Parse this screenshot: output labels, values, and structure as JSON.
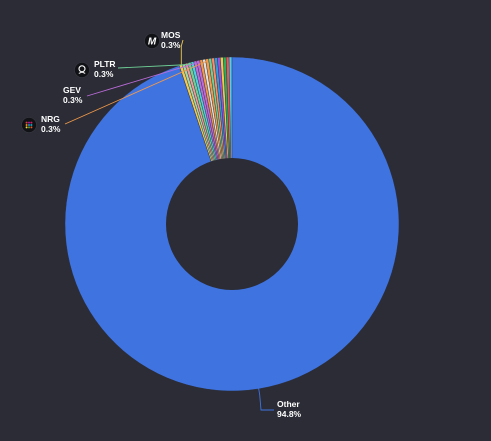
{
  "chart_data": {
    "type": "pie",
    "donut": true,
    "title": "",
    "legend": "none",
    "labeled_slices": [
      {
        "name": "Other",
        "value": 94.8,
        "value_label": "94.8%",
        "color": "#3f73e0",
        "icon": "",
        "leader_color": "#3f73e0"
      },
      {
        "name": "MOS",
        "value": 0.3,
        "value_label": "0.3%",
        "color": "#f2c94c",
        "icon": "mosaic-logo-icon",
        "leader_color": "#f2c94c"
      },
      {
        "name": "PLTR",
        "value": 0.3,
        "value_label": "0.3%",
        "color": "#6fcf97",
        "icon": "palantir-logo-icon",
        "leader_color": "#6fcf97"
      },
      {
        "name": "GEV",
        "value": 0.3,
        "value_label": "0.3%",
        "color": "#bb6bd9",
        "icon": "",
        "leader_color": "#bb6bd9"
      },
      {
        "name": "NRG",
        "value": 0.3,
        "value_label": "0.3%",
        "color": "#f2994a",
        "icon": "nrg-logo-icon",
        "leader_color": "#f2994a"
      }
    ],
    "other_small_slices": {
      "count": 14,
      "approx_value_each": 0.28,
      "colors": [
        "#56ccf2",
        "#eb5757",
        "#27ae60",
        "#f2c94c",
        "#9b51e0",
        "#2d9cdb",
        "#ff8a65",
        "#6fcf97",
        "#e0e0e0",
        "#f2994a",
        "#bb6bd9",
        "#4dd0e1",
        "#ef9a9a",
        "#a5d6a7"
      ]
    }
  }
}
